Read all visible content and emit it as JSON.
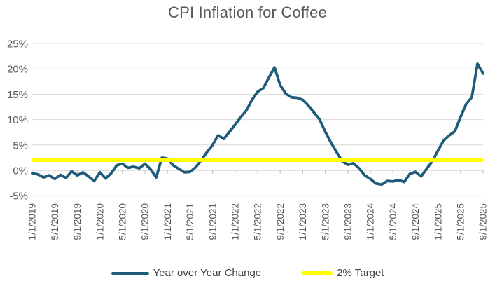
{
  "title": "CPI Inflation for Coffee",
  "colors": {
    "series_line": "#1F5C7B",
    "target_line": "#FFFF00",
    "gridline": "#D9D9D9",
    "axis_line": "#BFBFBF",
    "title_text": "#595959",
    "axis_text": "#595959",
    "legend_text": "#404040"
  },
  "chart_data": {
    "type": "line",
    "title": "CPI Inflation for Coffee",
    "xlabel": "",
    "ylabel": "",
    "ylim": [
      -5,
      25
    ],
    "y_tick_values": [
      25,
      20,
      15,
      10,
      5,
      0,
      -5
    ],
    "y_tick_suffix": "%",
    "grid": true,
    "legend_position": "bottom",
    "x_monthly_range": "1/1/2019 to 9/1/2025",
    "x_tick_labels": [
      "1/1/2019",
      "5/1/2019",
      "9/1/2019",
      "1/1/2020",
      "5/1/2020",
      "9/1/2020",
      "1/1/2021",
      "5/1/2021",
      "9/1/2021",
      "1/1/2022",
      "5/1/2022",
      "9/1/2022",
      "1/1/2023",
      "5/1/2023",
      "9/1/2023",
      "1/1/2024",
      "5/1/2024",
      "9/1/2024",
      "1/1/2025",
      "5/1/2025",
      "9/1/2025"
    ],
    "x_ticks_every_n_points": 4,
    "series": [
      {
        "name": "Year over Year Change",
        "type": "line",
        "values": [
          -0.6,
          -0.8,
          -1.4,
          -1.0,
          -1.7,
          -0.9,
          -1.5,
          -0.2,
          -1.0,
          -0.4,
          -1.2,
          -2.1,
          -0.4,
          -1.6,
          -0.6,
          1.0,
          1.3,
          0.5,
          0.7,
          0.4,
          1.3,
          0.2,
          -1.4,
          2.5,
          2.3,
          1.0,
          0.3,
          -0.4,
          -0.3,
          0.6,
          2.0,
          3.6,
          5.0,
          6.9,
          6.2,
          7.6,
          9.0,
          10.5,
          11.8,
          13.9,
          15.5,
          16.2,
          18.3,
          20.3,
          16.8,
          15.1,
          14.4,
          14.3,
          13.9,
          12.8,
          11.4,
          10.0,
          7.6,
          5.5,
          3.6,
          1.8,
          1.1,
          1.4,
          0.4,
          -1.0,
          -1.7,
          -2.6,
          -2.8,
          -2.1,
          -2.2,
          -1.9,
          -2.3,
          -0.7,
          -0.3,
          -1.2,
          0.3,
          1.8,
          3.9,
          5.9,
          6.9,
          7.7,
          10.5,
          13.1,
          14.4,
          21.0,
          19.1
        ]
      },
      {
        "name": "2% Target",
        "type": "horizontal-line",
        "value": 2
      }
    ]
  }
}
